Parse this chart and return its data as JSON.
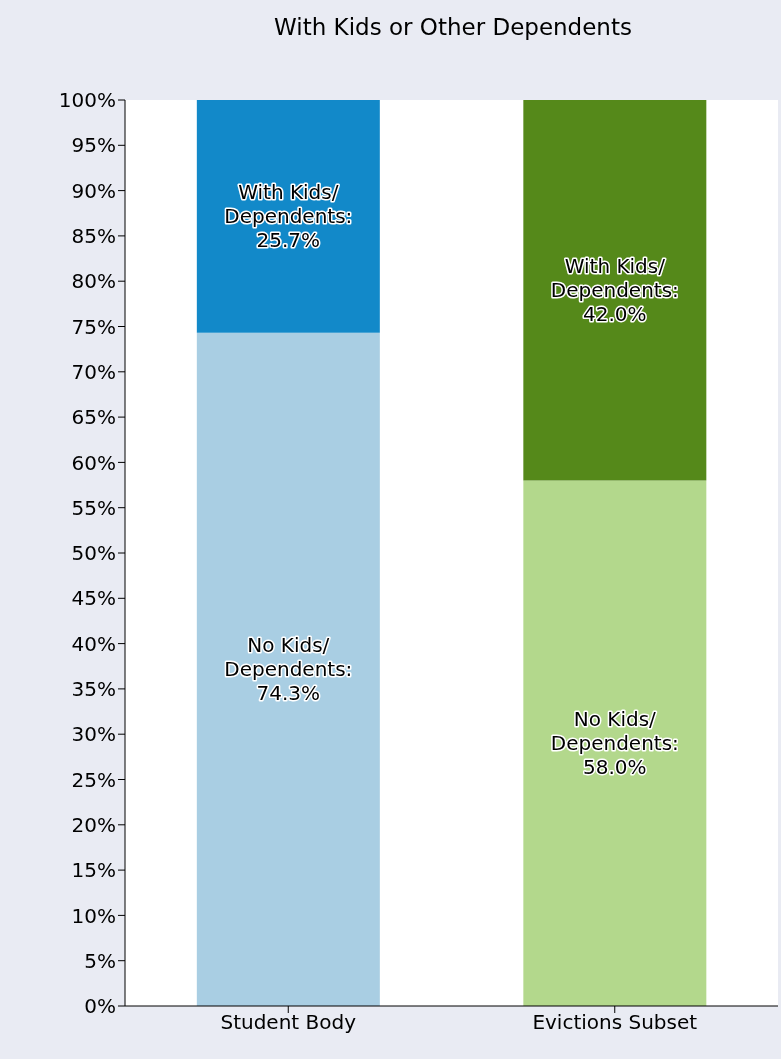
{
  "chart_data": {
    "type": "bar",
    "title": "With Kids or Other Dependents",
    "stacked": true,
    "categories": [
      "Student Body",
      "Evictions Subset"
    ],
    "series": [
      {
        "colors": [
          "#a9cee3",
          "#b3d88c"
        ],
        "values": [
          74.3,
          58.0
        ],
        "value_labels": [
          "No Kids/\nDependents:\n74.3%",
          "No Kids/\nDependents:\n58.0%"
        ]
      },
      {
        "colors": [
          "#1289c9",
          "#55891a"
        ],
        "values": [
          25.7,
          42.0
        ],
        "value_labels": [
          "With Kids/\nDependents:\n25.7%",
          "With Kids/\nDependents:\n42.0%"
        ]
      }
    ],
    "ylim": [
      0,
      100
    ],
    "yticks": [
      {
        "value": 0,
        "label": "0%"
      },
      {
        "value": 5,
        "label": "5%"
      },
      {
        "value": 10,
        "label": "10%"
      },
      {
        "value": 15,
        "label": "15%"
      },
      {
        "value": 20,
        "label": "20%"
      },
      {
        "value": 25,
        "label": "25%"
      },
      {
        "value": 30,
        "label": "30%"
      },
      {
        "value": 35,
        "label": "35%"
      },
      {
        "value": 40,
        "label": "40%"
      },
      {
        "value": 45,
        "label": "45%"
      },
      {
        "value": 50,
        "label": "50%"
      },
      {
        "value": 55,
        "label": "55%"
      },
      {
        "value": 60,
        "label": "60%"
      },
      {
        "value": 65,
        "label": "65%"
      },
      {
        "value": 70,
        "label": "70%"
      },
      {
        "value": 75,
        "label": "75%"
      },
      {
        "value": 80,
        "label": "80%"
      },
      {
        "value": 85,
        "label": "85%"
      },
      {
        "value": 90,
        "label": "90%"
      },
      {
        "value": 95,
        "label": "95%"
      },
      {
        "value": 100,
        "label": "100%"
      }
    ],
    "grid": false,
    "legend": false
  }
}
